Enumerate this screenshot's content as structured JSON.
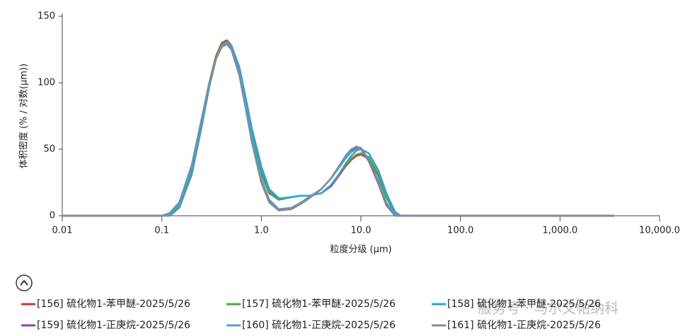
{
  "chart_data": {
    "type": "line",
    "xlabel": "粒度分级 (μm)",
    "ylabel": "体积密度 (% / 对数(μm))",
    "xscale": "log",
    "xlim": [
      0.01,
      10000
    ],
    "xticks": [
      0.01,
      0.1,
      {
        "value": 1,
        "label": "1.0"
      },
      {
        "value": 10,
        "label": "10.0"
      },
      {
        "value": 100,
        "label": "100.0"
      },
      {
        "value": 1000,
        "label": "1,000.0"
      },
      {
        "value": 10000,
        "label": "10,000.0"
      }
    ],
    "ylim": [
      0,
      150
    ],
    "yticks": [
      0,
      50,
      100,
      150
    ],
    "x": [
      0.01,
      0.1,
      0.12,
      0.15,
      0.2,
      0.25,
      0.3,
      0.35,
      0.4,
      0.45,
      0.5,
      0.6,
      0.7,
      0.8,
      1.0,
      1.2,
      1.5,
      2.0,
      2.5,
      3.0,
      4.0,
      5.0,
      6.0,
      7.0,
      8.0,
      9.0,
      10.0,
      12.0,
      15.0,
      18.0,
      22.0,
      25.0,
      3500
    ],
    "series": [
      {
        "name": "[156] 硫化物1-苯甲醚-2025/5/26",
        "color": "#e3302b",
        "values": [
          0,
          0,
          1,
          8,
          35,
          70,
          100,
          120,
          130,
          132,
          128,
          110,
          85,
          62,
          32,
          17,
          12,
          14,
          15,
          15,
          17,
          22,
          30,
          37,
          42,
          45,
          46,
          43,
          30,
          14,
          2,
          0,
          0
        ]
      },
      {
        "name": "[157] 硫化物1-苯甲醚-2025/5/26",
        "color": "#3aae45",
        "values": [
          0,
          0,
          1,
          8,
          34,
          69,
          99,
          119,
          129,
          131,
          127,
          110,
          85,
          62,
          33,
          18,
          12,
          14,
          15,
          15,
          17,
          23,
          31,
          38,
          43,
          46,
          47,
          44,
          31,
          14,
          2,
          0,
          0
        ]
      },
      {
        "name": "[158] 硫化物1-苯甲醚-2025/5/26",
        "color": "#1ea6e6",
        "values": [
          0,
          0,
          0,
          6,
          31,
          66,
          97,
          118,
          128,
          130,
          128,
          112,
          88,
          66,
          37,
          20,
          13,
          14,
          15,
          15,
          17,
          23,
          31,
          39,
          45,
          49,
          50,
          47,
          34,
          17,
          3,
          0,
          0
        ]
      },
      {
        "name": "[159] 硫化物1-正庚烷-2025/5/26",
        "color": "#8e44ad",
        "values": [
          0,
          0,
          2,
          10,
          38,
          72,
          100,
          118,
          127,
          129,
          125,
          106,
          80,
          56,
          25,
          10,
          4,
          5,
          9,
          13,
          20,
          28,
          37,
          44,
          49,
          51,
          50,
          41,
          24,
          8,
          0,
          0,
          0
        ]
      },
      {
        "name": "[160] 硫化物1-正庚烷-2025/5/26",
        "color": "#5b9bd5",
        "values": [
          0,
          0,
          1,
          9,
          36,
          71,
          100,
          118,
          128,
          130,
          126,
          108,
          83,
          59,
          28,
          12,
          5,
          6,
          10,
          14,
          20,
          28,
          36,
          43,
          48,
          50,
          50,
          42,
          26,
          10,
          1,
          0,
          0
        ]
      },
      {
        "name": "[161] 硫化物1-正庚烷-2025/5/26",
        "color": "#8a8a8a",
        "values": [
          0,
          0,
          2,
          10,
          38,
          72,
          100,
          118,
          127,
          129,
          125,
          106,
          80,
          56,
          25,
          10,
          4,
          5,
          9,
          13,
          20,
          28,
          37,
          45,
          50,
          52,
          51,
          42,
          25,
          9,
          0,
          0,
          0
        ]
      }
    ]
  },
  "watermark": "服务号 · 马尔文帕纳科"
}
